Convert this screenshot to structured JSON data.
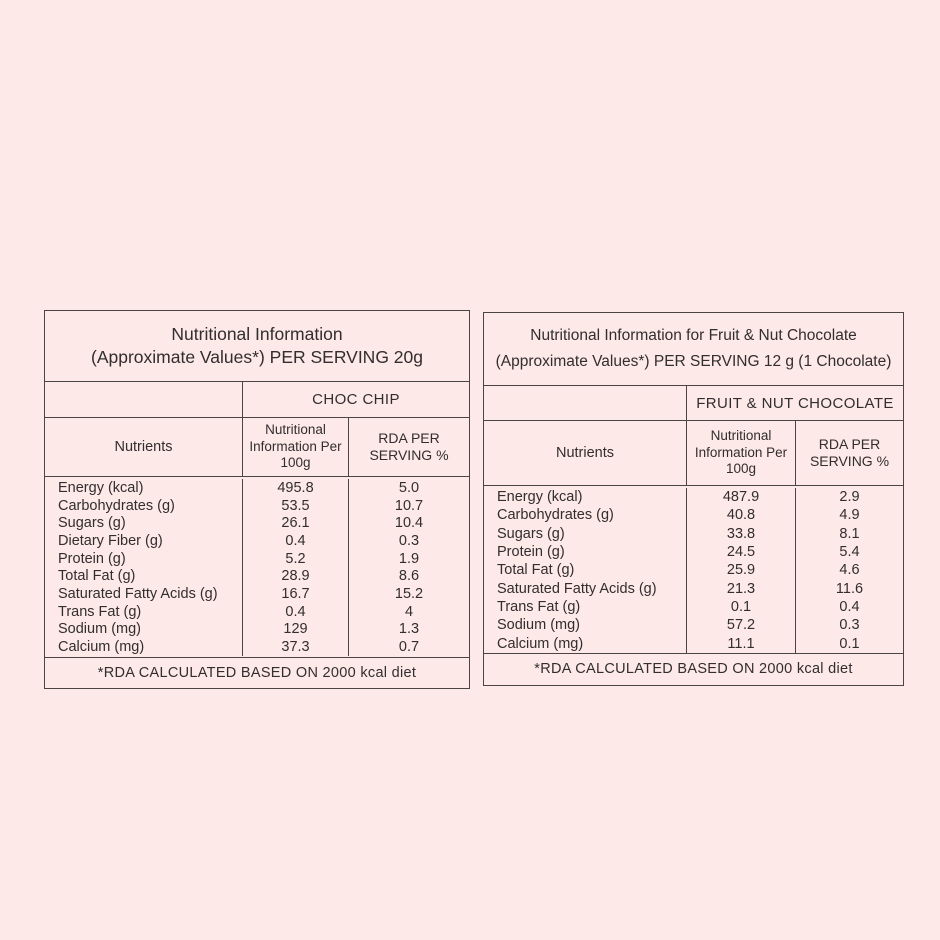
{
  "page": {
    "background_color": "#fce9e8",
    "line_color": "#4a4442",
    "text_color": "#322e2d"
  },
  "left_table": {
    "title_line1": "Nutritional Information",
    "title_line2": "(Approximate Values*) PER SERVING 20g",
    "variant": "CHOC CHIP",
    "headers": {
      "nutrients": "Nutrients",
      "per100g": "Nutritional Information Per 100g",
      "rda": "RDA PER SERVING %"
    },
    "rows": [
      {
        "label": "Energy (kcal)",
        "per100g": "495.8",
        "rda": "5.0"
      },
      {
        "label": "Carbohydrates (g)",
        "per100g": "53.5",
        "rda": "10.7"
      },
      {
        "label": "Sugars (g)",
        "per100g": "26.1",
        "rda": "10.4"
      },
      {
        "label": "Dietary Fiber (g)",
        "per100g": "0.4",
        "rda": "0.3"
      },
      {
        "label": "Protein (g)",
        "per100g": "5.2",
        "rda": "1.9"
      },
      {
        "label": "Total Fat (g)",
        "per100g": "28.9",
        "rda": "8.6"
      },
      {
        "label": "Saturated Fatty Acids (g)",
        "per100g": "16.7",
        "rda": "15.2"
      },
      {
        "label": "Trans Fat (g)",
        "per100g": "0.4",
        "rda": "4"
      },
      {
        "label": "Sodium (mg)",
        "per100g": "129",
        "rda": "1.3"
      },
      {
        "label": "Calcium (mg)",
        "per100g": "37.3",
        "rda": "0.7"
      }
    ],
    "footnote": "*RDA CALCULATED BASED ON 2000 kcal diet"
  },
  "right_table": {
    "title_line1": "Nutritional Information for Fruit & Nut Chocolate",
    "title_line2": "(Approximate Values*) PER SERVING 12 g (1 Chocolate)",
    "variant": "FRUIT & NUT CHOCOLATE",
    "headers": {
      "nutrients": "Nutrients",
      "per100g": "Nutritional Information Per 100g",
      "rda": "RDA PER SERVING %"
    },
    "rows": [
      {
        "label": "Energy (kcal)",
        "per100g": "487.9",
        "rda": "2.9"
      },
      {
        "label": "Carbohydrates (g)",
        "per100g": "40.8",
        "rda": "4.9"
      },
      {
        "label": "Sugars (g)",
        "per100g": "33.8",
        "rda": "8.1"
      },
      {
        "label": "Protein (g)",
        "per100g": "24.5",
        "rda": "5.4"
      },
      {
        "label": "Total Fat (g)",
        "per100g": "25.9",
        "rda": "4.6"
      },
      {
        "label": "Saturated Fatty Acids (g)",
        "per100g": "21.3",
        "rda": "11.6"
      },
      {
        "label": "Trans Fat (g)",
        "per100g": "0.1",
        "rda": "0.4"
      },
      {
        "label": "Sodium (mg)",
        "per100g": "57.2",
        "rda": "0.3"
      },
      {
        "label": "Calcium (mg)",
        "per100g": "11.1",
        "rda": "0.1"
      }
    ],
    "footnote": "*RDA CALCULATED BASED ON 2000 kcal diet"
  }
}
